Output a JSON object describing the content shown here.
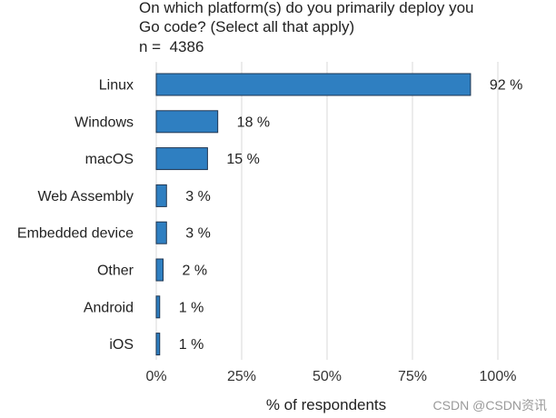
{
  "chart_data": {
    "type": "bar",
    "orientation": "horizontal",
    "title_lines": [
      "On which platform(s) do you primarily deploy you",
      "Go code? (Select all that apply)"
    ],
    "n_label": "n = ",
    "n_value": "4386",
    "categories": [
      "Linux",
      "Windows",
      "macOS",
      "Web Assembly",
      "Embedded device",
      "Other",
      "Android",
      "iOS"
    ],
    "values": [
      92,
      18,
      15,
      3,
      3,
      2,
      1,
      1
    ],
    "value_labels": [
      "92 %",
      "18 %",
      "15 %",
      "3 %",
      "3 %",
      "2 %",
      "1 %",
      "1 %"
    ],
    "xticks": [
      0,
      25,
      50,
      75,
      100
    ],
    "xtick_labels": [
      "0%",
      "25%",
      "50%",
      "75%",
      "100%"
    ],
    "xlabel": "% of respondents",
    "ylabel": "",
    "xlim": [
      0,
      100
    ],
    "grid": true,
    "bar_color": "#2f7fc1",
    "bar_edge_color": "#1f3550",
    "grid_color": "#e6e6e6"
  },
  "watermark": "CSDN @CSDN资讯"
}
